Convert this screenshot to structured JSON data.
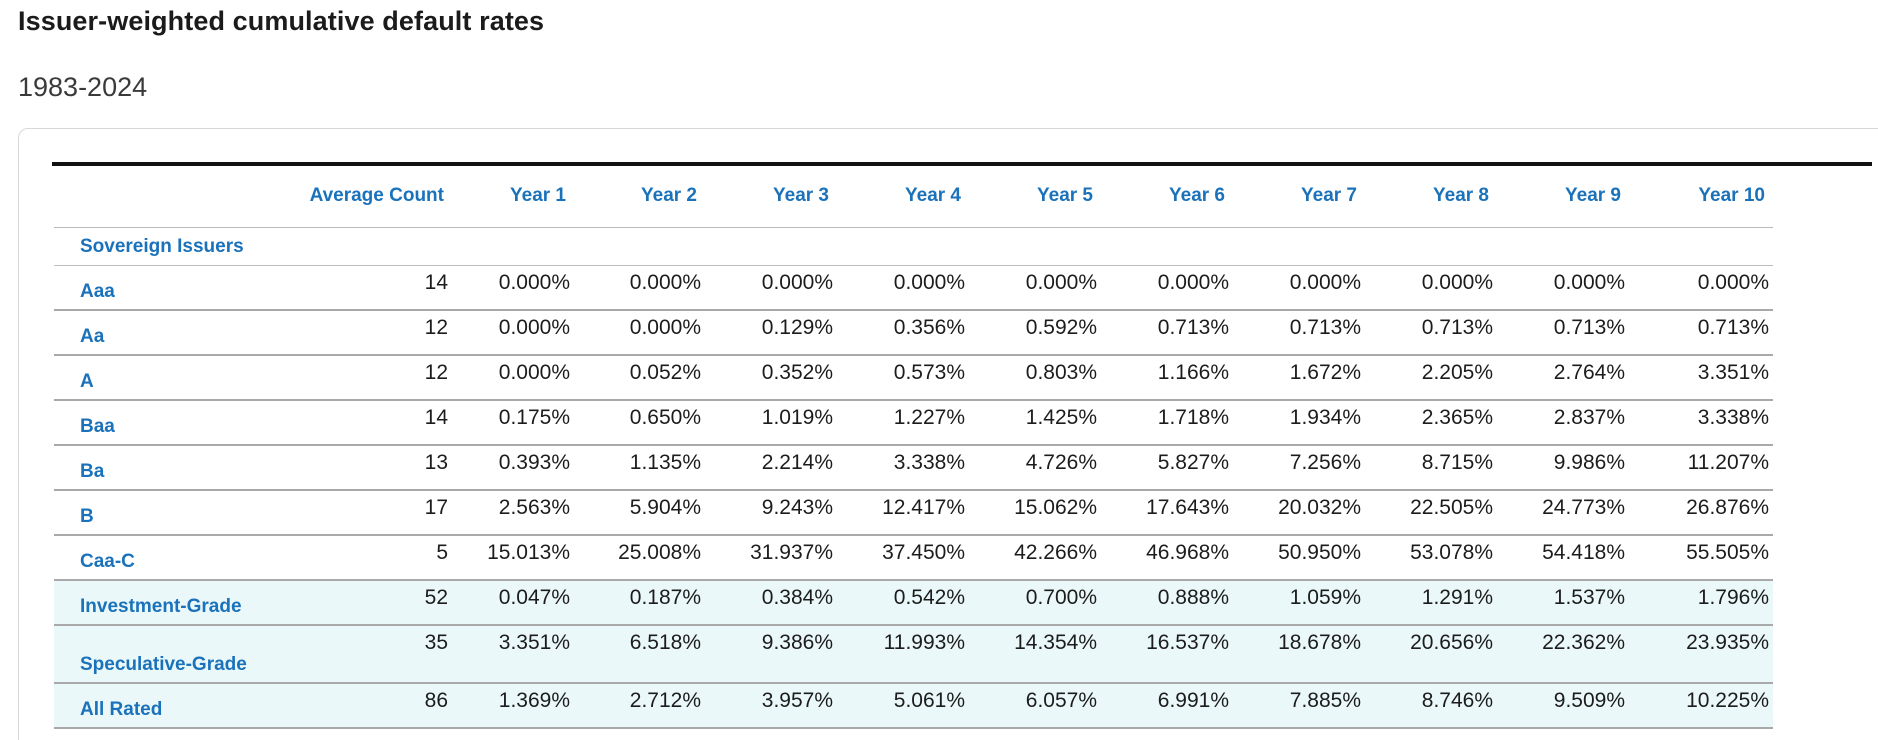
{
  "page": {
    "title": "Issuer-weighted cumulative default rates",
    "subtitle": "1983-2024"
  },
  "table": {
    "columns": [
      "",
      "Average Count",
      "Year 1",
      "Year 2",
      "Year 3",
      "Year 4",
      "Year 5",
      "Year 6",
      "Year 7",
      "Year 8",
      "Year 9",
      "Year 10"
    ],
    "section_label": "Sovereign Issuers",
    "rows": [
      {
        "label": "Aaa",
        "count": "14",
        "values": [
          "0.000%",
          "0.000%",
          "0.000%",
          "0.000%",
          "0.000%",
          "0.000%",
          "0.000%",
          "0.000%",
          "0.000%",
          "0.000%"
        ]
      },
      {
        "label": "Aa",
        "count": "12",
        "values": [
          "0.000%",
          "0.000%",
          "0.129%",
          "0.356%",
          "0.592%",
          "0.713%",
          "0.713%",
          "0.713%",
          "0.713%",
          "0.713%"
        ]
      },
      {
        "label": "A",
        "count": "12",
        "values": [
          "0.000%",
          "0.052%",
          "0.352%",
          "0.573%",
          "0.803%",
          "1.166%",
          "1.672%",
          "2.205%",
          "2.764%",
          "3.351%"
        ]
      },
      {
        "label": "Baa",
        "count": "14",
        "values": [
          "0.175%",
          "0.650%",
          "1.019%",
          "1.227%",
          "1.425%",
          "1.718%",
          "1.934%",
          "2.365%",
          "2.837%",
          "3.338%"
        ]
      },
      {
        "label": "Ba",
        "count": "13",
        "values": [
          "0.393%",
          "1.135%",
          "2.214%",
          "3.338%",
          "4.726%",
          "5.827%",
          "7.256%",
          "8.715%",
          "9.986%",
          "11.207%"
        ]
      },
      {
        "label": "B",
        "count": "17",
        "values": [
          "2.563%",
          "5.904%",
          "9.243%",
          "12.417%",
          "15.062%",
          "17.643%",
          "20.032%",
          "22.505%",
          "24.773%",
          "26.876%"
        ]
      },
      {
        "label": "Caa-C",
        "count": "5",
        "values": [
          "15.013%",
          "25.008%",
          "31.937%",
          "37.450%",
          "42.266%",
          "46.968%",
          "50.950%",
          "53.078%",
          "54.418%",
          "55.505%"
        ]
      },
      {
        "label": "Investment-Grade",
        "count": "52",
        "values": [
          "0.047%",
          "0.187%",
          "0.384%",
          "0.542%",
          "0.700%",
          "0.888%",
          "1.059%",
          "1.291%",
          "1.537%",
          "1.796%"
        ]
      },
      {
        "label": "Speculative-Grade",
        "count": "35",
        "values": [
          "3.351%",
          "6.518%",
          "9.386%",
          "11.993%",
          "14.354%",
          "16.537%",
          "18.678%",
          "20.656%",
          "22.362%",
          "23.935%"
        ]
      },
      {
        "label": "All Rated",
        "count": "86",
        "values": [
          "1.369%",
          "2.712%",
          "3.957%",
          "5.061%",
          "6.057%",
          "6.991%",
          "7.885%",
          "8.746%",
          "9.509%",
          "10.225%"
        ]
      }
    ]
  },
  "colors": {
    "header_text": "#1a72bb",
    "summary_background": "#eaf8f9"
  }
}
